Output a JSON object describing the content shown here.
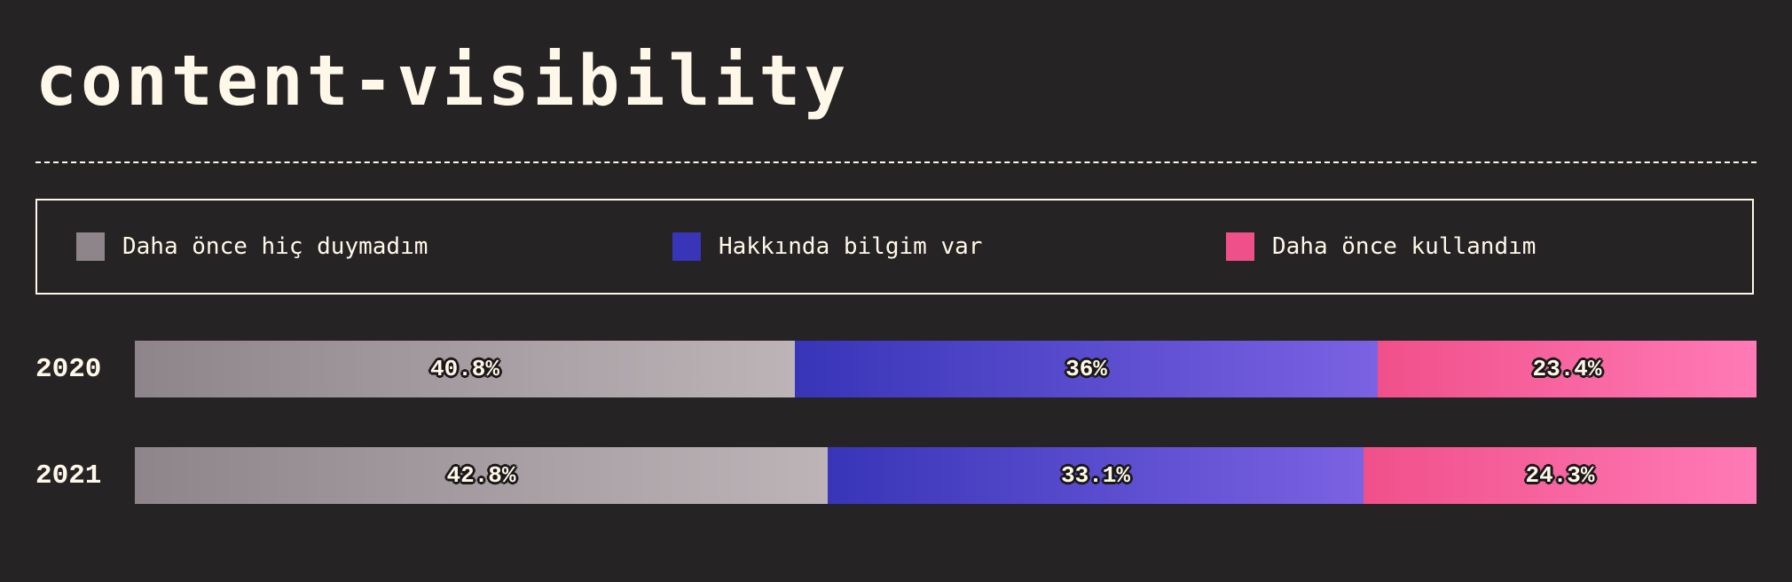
{
  "title": "content-visibility",
  "colors": {
    "background": "#262325",
    "text": "#fff8e8",
    "never_heard": "#8e858b",
    "never_heard_end": "#bcb4b7",
    "know_about": "#3835b8",
    "know_about_end": "#7b62e3",
    "used": "#f0508a",
    "used_end": "#ff7ab6"
  },
  "chart_data": {
    "type": "bar",
    "stacked": true,
    "orientation": "horizontal",
    "normalized_to": 100,
    "categories": [
      "2020",
      "2021"
    ],
    "series": [
      {
        "name": "Daha önce hiç duymadım",
        "color": "#8e858b",
        "values": [
          40.8,
          42.8
        ],
        "labels": [
          "40.8%",
          "42.8%"
        ]
      },
      {
        "name": "Hakkında bilgim var",
        "color": "#3835b8",
        "values": [
          36,
          33.1
        ],
        "labels": [
          "36%",
          "33.1%"
        ]
      },
      {
        "name": "Daha önce kullandım",
        "color": "#f0508a",
        "values": [
          23.4,
          24.3
        ],
        "labels": [
          "23.4%",
          "24.3%"
        ]
      }
    ],
    "legend": "top",
    "grid": false
  }
}
